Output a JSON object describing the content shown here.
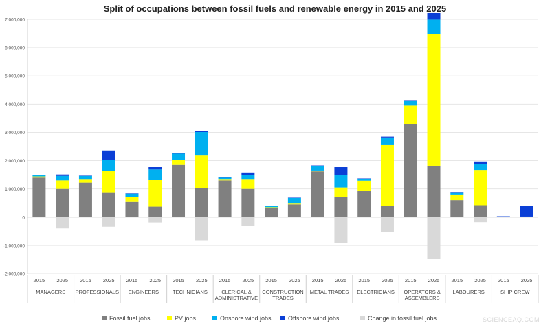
{
  "chart_data": {
    "type": "bar",
    "stacked": true,
    "title": "Split of occupations between fossil fuels and renewable energy in 2015 and 2025",
    "ylim": [
      -2000000,
      7000000
    ],
    "yticks": [
      "-2,000,000",
      "-1,000,000",
      "0",
      "1,000,000",
      "2,000,000",
      "3,000,000",
      "4,000,000",
      "5,000,000",
      "6,000,000",
      "7,000,000"
    ],
    "ytick_values": [
      -2000000,
      -1000000,
      0,
      1000000,
      2000000,
      3000000,
      4000000,
      5000000,
      6000000,
      7000000
    ],
    "grid": true,
    "legend_position": "bottom",
    "groups": [
      {
        "name": [
          "MANAGERS"
        ],
        "years": [
          "2015",
          "2025"
        ]
      },
      {
        "name": [
          "PROFESSIONALS"
        ],
        "years": [
          "2015",
          "2025"
        ]
      },
      {
        "name": [
          "ENGINEERS"
        ],
        "years": [
          "2015",
          "2025"
        ]
      },
      {
        "name": [
          "TECHNICIANS"
        ],
        "years": [
          "2015",
          "2025"
        ]
      },
      {
        "name": [
          "CLERICAL &",
          "ADMINISTRATIVE"
        ],
        "years": [
          "2015",
          "2025"
        ]
      },
      {
        "name": [
          "CONSTRUCTION",
          "TRADES"
        ],
        "years": [
          "2015",
          "2025"
        ]
      },
      {
        "name": [
          "METAL TRADES"
        ],
        "years": [
          "2015",
          "2025"
        ]
      },
      {
        "name": [
          "ELECTRICIANS"
        ],
        "years": [
          "2015",
          "2025"
        ]
      },
      {
        "name": [
          "OPERATORS &",
          "ASSEMBLERS"
        ],
        "years": [
          "2015",
          "2025"
        ]
      },
      {
        "name": [
          "LABOURERS"
        ],
        "years": [
          "2015",
          "2025"
        ]
      },
      {
        "name": [
          "SHIP CREW"
        ],
        "years": [
          "2015",
          "2025"
        ]
      }
    ],
    "series": [
      {
        "name": "Fossil fuel jobs",
        "color": "#808080",
        "values": [
          1400000,
          1000000,
          1220000,
          880000,
          560000,
          370000,
          1850000,
          1030000,
          1300000,
          1000000,
          330000,
          450000,
          1620000,
          700000,
          920000,
          400000,
          3300000,
          1820000,
          600000,
          420000,
          0,
          0
        ]
      },
      {
        "name": "PV jobs",
        "color": "#ffff00",
        "values": [
          40000,
          300000,
          130000,
          760000,
          150000,
          950000,
          180000,
          1150000,
          50000,
          350000,
          20000,
          50000,
          30000,
          350000,
          370000,
          2150000,
          650000,
          4650000,
          200000,
          1250000,
          0,
          0
        ]
      },
      {
        "name": "Onshore wind jobs",
        "color": "#00b0f0",
        "values": [
          50000,
          160000,
          110000,
          390000,
          120000,
          370000,
          220000,
          830000,
          50000,
          130000,
          40000,
          180000,
          170000,
          450000,
          70000,
          270000,
          160000,
          520000,
          80000,
          200000,
          20000,
          20000
        ]
      },
      {
        "name": "Offshore wind jobs",
        "color": "#0b3fd6",
        "values": [
          10000,
          50000,
          10000,
          330000,
          10000,
          80000,
          10000,
          40000,
          10000,
          100000,
          10000,
          10000,
          10000,
          270000,
          10000,
          30000,
          10000,
          230000,
          10000,
          100000,
          10000,
          370000
        ]
      },
      {
        "name": "Change in fossil fuel jobs",
        "color": "#d9d9d9",
        "values": [
          0,
          -400000,
          0,
          -340000,
          0,
          -190000,
          0,
          -820000,
          0,
          -300000,
          0,
          0,
          0,
          -920000,
          0,
          -520000,
          0,
          -1480000,
          0,
          -180000,
          0,
          0
        ]
      }
    ]
  },
  "watermark": "SCIENCEAQ.COM"
}
